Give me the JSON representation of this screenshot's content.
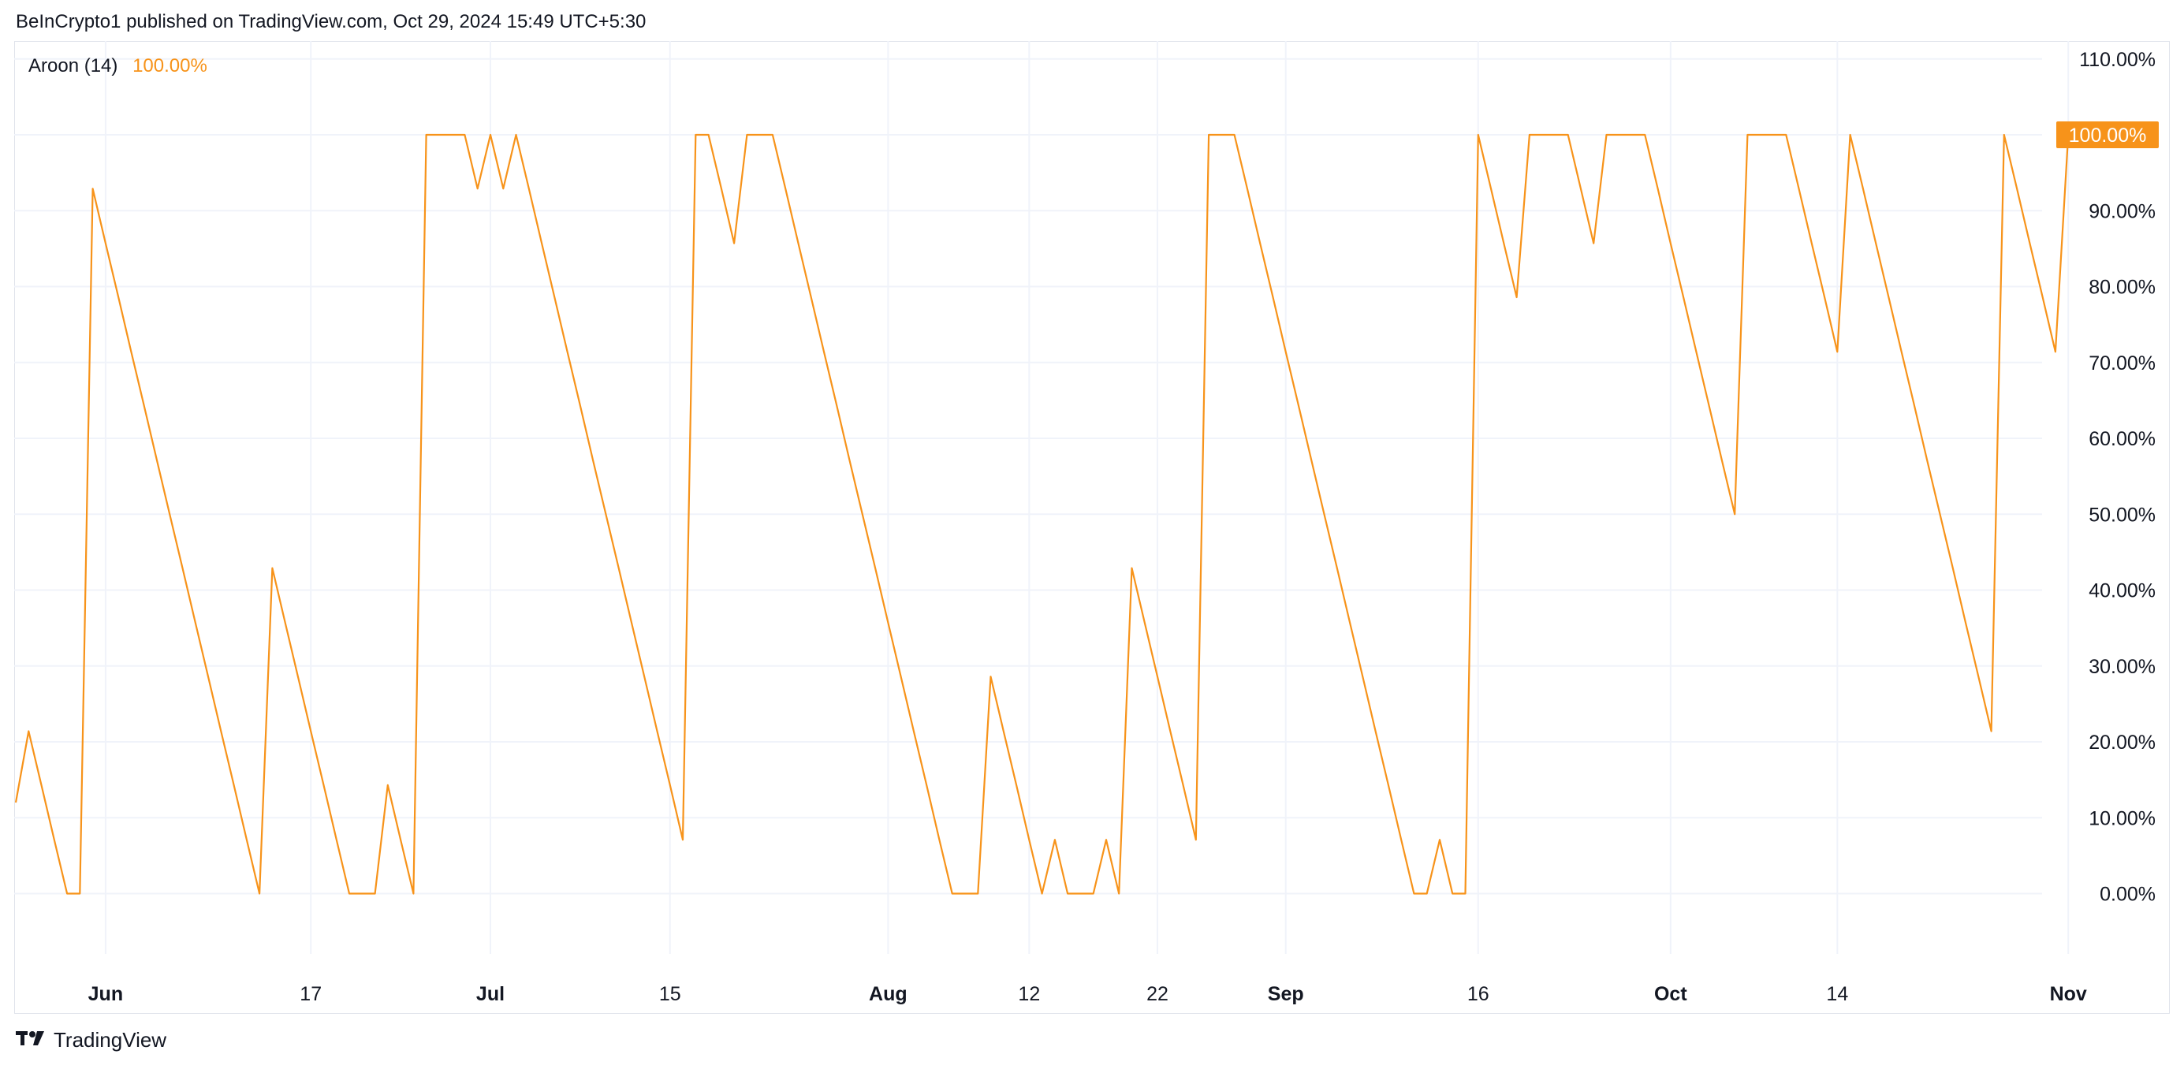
{
  "header": {
    "published": "BeInCrypto1 published on TradingView.com, Oct 29, 2024 15:49 UTC+5:30"
  },
  "legend": {
    "indicator": "Aroon (14)",
    "value": "100.00%"
  },
  "footer": {
    "brand": "TradingView",
    "logo_icon": "tradingview-logo-icon"
  },
  "colors": {
    "line": "#f7931a",
    "grid": "#f0f3fa",
    "text": "#131722",
    "badge_bg": "#f7931a",
    "badge_text": "#ffffff"
  },
  "chart_data": {
    "type": "line",
    "title": "",
    "xlabel": "",
    "ylabel": "",
    "ylim": [
      -10,
      112
    ],
    "grid": true,
    "y_ticks": [
      "110.00%",
      "100.00%",
      "90.00%",
      "80.00%",
      "70.00%",
      "60.00%",
      "50.00%",
      "40.00%",
      "30.00%",
      "20.00%",
      "10.00%",
      "0.00%"
    ],
    "x_ticks": [
      {
        "label": "Jun",
        "bold": true,
        "date": "2024-06-01"
      },
      {
        "label": "17",
        "bold": false,
        "date": "2024-06-17"
      },
      {
        "label": "Jul",
        "bold": true,
        "date": "2024-07-01"
      },
      {
        "label": "15",
        "bold": false,
        "date": "2024-07-15"
      },
      {
        "label": "Aug",
        "bold": true,
        "date": "2024-08-01"
      },
      {
        "label": "12",
        "bold": false,
        "date": "2024-08-12"
      },
      {
        "label": "22",
        "bold": false,
        "date": "2024-08-22"
      },
      {
        "label": "Sep",
        "bold": true,
        "date": "2024-09-01"
      },
      {
        "label": "16",
        "bold": false,
        "date": "2024-09-16"
      },
      {
        "label": "Oct",
        "bold": true,
        "date": "2024-10-01"
      },
      {
        "label": "14",
        "bold": false,
        "date": "2024-10-14"
      },
      {
        "label": "Nov",
        "bold": true,
        "date": "2024-11-01"
      }
    ],
    "current_value_label": "100.00%",
    "series": [
      {
        "points": [
          [
            "2024-05-25",
            12
          ],
          [
            "2024-05-26",
            21.4
          ],
          [
            "2024-05-27",
            14.3
          ],
          [
            "2024-05-28",
            7.1
          ],
          [
            "2024-05-29",
            0
          ],
          [
            "2024-05-30",
            0
          ],
          [
            "2024-05-31",
            92.9
          ],
          [
            "2024-06-01",
            85.7
          ],
          [
            "2024-06-02",
            78.6
          ],
          [
            "2024-06-03",
            71.4
          ],
          [
            "2024-06-04",
            64.3
          ],
          [
            "2024-06-05",
            57.1
          ],
          [
            "2024-06-06",
            50
          ],
          [
            "2024-06-07",
            42.9
          ],
          [
            "2024-06-08",
            35.7
          ],
          [
            "2024-06-09",
            28.6
          ],
          [
            "2024-06-10",
            21.4
          ],
          [
            "2024-06-11",
            14.3
          ],
          [
            "2024-06-12",
            7.1
          ],
          [
            "2024-06-13",
            0
          ],
          [
            "2024-06-14",
            42.9
          ],
          [
            "2024-06-15",
            35.7
          ],
          [
            "2024-06-16",
            28.6
          ],
          [
            "2024-06-17",
            21.4
          ],
          [
            "2024-06-18",
            14.3
          ],
          [
            "2024-06-19",
            7.1
          ],
          [
            "2024-06-20",
            0
          ],
          [
            "2024-06-21",
            0
          ],
          [
            "2024-06-22",
            0
          ],
          [
            "2024-06-23",
            14.3
          ],
          [
            "2024-06-24",
            7.1
          ],
          [
            "2024-06-25",
            0
          ],
          [
            "2024-06-26",
            100
          ],
          [
            "2024-06-27",
            100
          ],
          [
            "2024-06-28",
            100
          ],
          [
            "2024-06-29",
            100
          ],
          [
            "2024-06-30",
            92.9
          ],
          [
            "2024-07-01",
            100
          ],
          [
            "2024-07-02",
            92.9
          ],
          [
            "2024-07-03",
            100
          ],
          [
            "2024-07-04",
            92.9
          ],
          [
            "2024-07-05",
            85.7
          ],
          [
            "2024-07-06",
            78.6
          ],
          [
            "2024-07-07",
            71.4
          ],
          [
            "2024-07-08",
            64.3
          ],
          [
            "2024-07-09",
            57.1
          ],
          [
            "2024-07-10",
            50
          ],
          [
            "2024-07-11",
            42.9
          ],
          [
            "2024-07-12",
            35.7
          ],
          [
            "2024-07-13",
            28.6
          ],
          [
            "2024-07-14",
            21.4
          ],
          [
            "2024-07-15",
            14.3
          ],
          [
            "2024-07-16",
            7.1
          ],
          [
            "2024-07-17",
            100
          ],
          [
            "2024-07-18",
            100
          ],
          [
            "2024-07-19",
            92.9
          ],
          [
            "2024-07-20",
            85.7
          ],
          [
            "2024-07-21",
            100
          ],
          [
            "2024-07-22",
            100
          ],
          [
            "2024-07-23",
            100
          ],
          [
            "2024-07-24",
            92.9
          ],
          [
            "2024-07-25",
            85.7
          ],
          [
            "2024-07-26",
            78.6
          ],
          [
            "2024-07-27",
            71.4
          ],
          [
            "2024-07-28",
            64.3
          ],
          [
            "2024-07-29",
            57.1
          ],
          [
            "2024-07-30",
            50
          ],
          [
            "2024-07-31",
            42.9
          ],
          [
            "2024-08-01",
            35.7
          ],
          [
            "2024-08-02",
            28.6
          ],
          [
            "2024-08-03",
            21.4
          ],
          [
            "2024-08-04",
            14.3
          ],
          [
            "2024-08-05",
            7.1
          ],
          [
            "2024-08-06",
            0
          ],
          [
            "2024-08-07",
            0
          ],
          [
            "2024-08-08",
            0
          ],
          [
            "2024-08-09",
            28.6
          ],
          [
            "2024-08-10",
            21.4
          ],
          [
            "2024-08-11",
            14.3
          ],
          [
            "2024-08-12",
            7.1
          ],
          [
            "2024-08-13",
            0
          ],
          [
            "2024-08-14",
            7.1
          ],
          [
            "2024-08-15",
            0
          ],
          [
            "2024-08-16",
            0
          ],
          [
            "2024-08-17",
            0
          ],
          [
            "2024-08-18",
            7.1
          ],
          [
            "2024-08-19",
            0
          ],
          [
            "2024-08-20",
            42.9
          ],
          [
            "2024-08-21",
            35.7
          ],
          [
            "2024-08-22",
            28.6
          ],
          [
            "2024-08-23",
            21.4
          ],
          [
            "2024-08-24",
            14.3
          ],
          [
            "2024-08-25",
            7.1
          ],
          [
            "2024-08-26",
            100
          ],
          [
            "2024-08-27",
            100
          ],
          [
            "2024-08-28",
            100
          ],
          [
            "2024-08-29",
            92.9
          ],
          [
            "2024-08-30",
            85.7
          ],
          [
            "2024-08-31",
            78.6
          ],
          [
            "2024-09-01",
            71.4
          ],
          [
            "2024-09-02",
            64.3
          ],
          [
            "2024-09-03",
            57.1
          ],
          [
            "2024-09-04",
            50
          ],
          [
            "2024-09-05",
            42.9
          ],
          [
            "2024-09-06",
            35.7
          ],
          [
            "2024-09-07",
            28.6
          ],
          [
            "2024-09-08",
            21.4
          ],
          [
            "2024-09-09",
            14.3
          ],
          [
            "2024-09-10",
            7.1
          ],
          [
            "2024-09-11",
            0
          ],
          [
            "2024-09-12",
            0
          ],
          [
            "2024-09-13",
            7.1
          ],
          [
            "2024-09-14",
            0
          ],
          [
            "2024-09-15",
            0
          ],
          [
            "2024-09-16",
            100
          ],
          [
            "2024-09-17",
            92.9
          ],
          [
            "2024-09-18",
            85.7
          ],
          [
            "2024-09-19",
            78.6
          ],
          [
            "2024-09-20",
            100
          ],
          [
            "2024-09-21",
            100
          ],
          [
            "2024-09-22",
            100
          ],
          [
            "2024-09-23",
            100
          ],
          [
            "2024-09-24",
            92.9
          ],
          [
            "2024-09-25",
            85.7
          ],
          [
            "2024-09-26",
            100
          ],
          [
            "2024-09-27",
            100
          ],
          [
            "2024-09-28",
            100
          ],
          [
            "2024-09-29",
            100
          ],
          [
            "2024-09-30",
            92.9
          ],
          [
            "2024-10-01",
            85.7
          ],
          [
            "2024-10-02",
            78.6
          ],
          [
            "2024-10-03",
            71.4
          ],
          [
            "2024-10-04",
            64.3
          ],
          [
            "2024-10-05",
            57.1
          ],
          [
            "2024-10-06",
            50
          ],
          [
            "2024-10-07",
            100
          ],
          [
            "2024-10-08",
            100
          ],
          [
            "2024-10-09",
            100
          ],
          [
            "2024-10-10",
            100
          ],
          [
            "2024-10-11",
            92.9
          ],
          [
            "2024-10-12",
            85.7
          ],
          [
            "2024-10-13",
            78.6
          ],
          [
            "2024-10-14",
            71.4
          ],
          [
            "2024-10-15",
            100
          ],
          [
            "2024-10-16",
            92.9
          ],
          [
            "2024-10-17",
            85.7
          ],
          [
            "2024-10-18",
            78.6
          ],
          [
            "2024-10-19",
            71.4
          ],
          [
            "2024-10-20",
            64.3
          ],
          [
            "2024-10-21",
            57.1
          ],
          [
            "2024-10-22",
            50
          ],
          [
            "2024-10-23",
            42.9
          ],
          [
            "2024-10-24",
            35.7
          ],
          [
            "2024-10-25",
            28.6
          ],
          [
            "2024-10-26",
            21.4
          ],
          [
            "2024-10-27",
            100
          ],
          [
            "2024-10-28",
            92.9
          ],
          [
            "2024-10-29",
            85.7
          ],
          [
            "2024-10-30",
            78.6
          ],
          [
            "2024-10-31",
            71.4
          ],
          [
            "2024-11-01",
            100
          ]
        ]
      }
    ]
  }
}
